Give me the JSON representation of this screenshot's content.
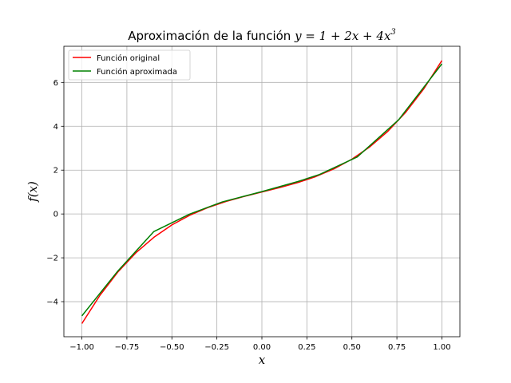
{
  "chart_data": {
    "type": "line",
    "title_prefix": "Aproximación de la función ",
    "title_formula": "y = 1 + 2x + 4x",
    "title_exponent": "3",
    "xlabel": "x",
    "ylabel": "f(x)",
    "xlim": [
      -1.1,
      1.1
    ],
    "ylim": [
      -5.6,
      7.65
    ],
    "xticks": [
      -1.0,
      -0.75,
      -0.5,
      -0.25,
      0.0,
      0.25,
      0.5,
      0.75,
      1.0
    ],
    "xtick_labels": [
      "−1.00",
      "−0.75",
      "−0.50",
      "−0.25",
      "0.00",
      "0.25",
      "0.50",
      "0.75",
      "1.00"
    ],
    "yticks": [
      -4,
      -2,
      0,
      2,
      4,
      6
    ],
    "ytick_labels": [
      "−4",
      "−2",
      "0",
      "2",
      "4",
      "6"
    ],
    "grid": true,
    "legend_position": "top-left",
    "series": [
      {
        "name": "Función original",
        "color": "#ff0000",
        "x": [
          -1.0,
          -0.9,
          -0.8,
          -0.7,
          -0.6,
          -0.5,
          -0.4,
          -0.3,
          -0.2,
          -0.1,
          0.0,
          0.1,
          0.2,
          0.3,
          0.4,
          0.5,
          0.6,
          0.7,
          0.8,
          0.9,
          1.0
        ],
        "y": [
          -5.0,
          -3.716,
          -2.648,
          -1.772,
          -1.064,
          -0.5,
          -0.056,
          0.292,
          0.568,
          0.796,
          1.0,
          1.204,
          1.432,
          1.708,
          2.056,
          2.5,
          3.064,
          3.772,
          4.648,
          5.716,
          7.0
        ]
      },
      {
        "name": "Función aproximada",
        "color": "#008000",
        "x": [
          -1.0,
          -0.8,
          -0.6,
          -0.4,
          -0.22,
          0.0,
          0.2,
          0.32,
          0.53,
          0.76,
          1.0
        ],
        "y": [
          -4.65,
          -2.6,
          -0.8,
          0.0,
          0.55,
          1.02,
          1.48,
          1.8,
          2.6,
          4.3,
          6.85
        ]
      }
    ]
  }
}
